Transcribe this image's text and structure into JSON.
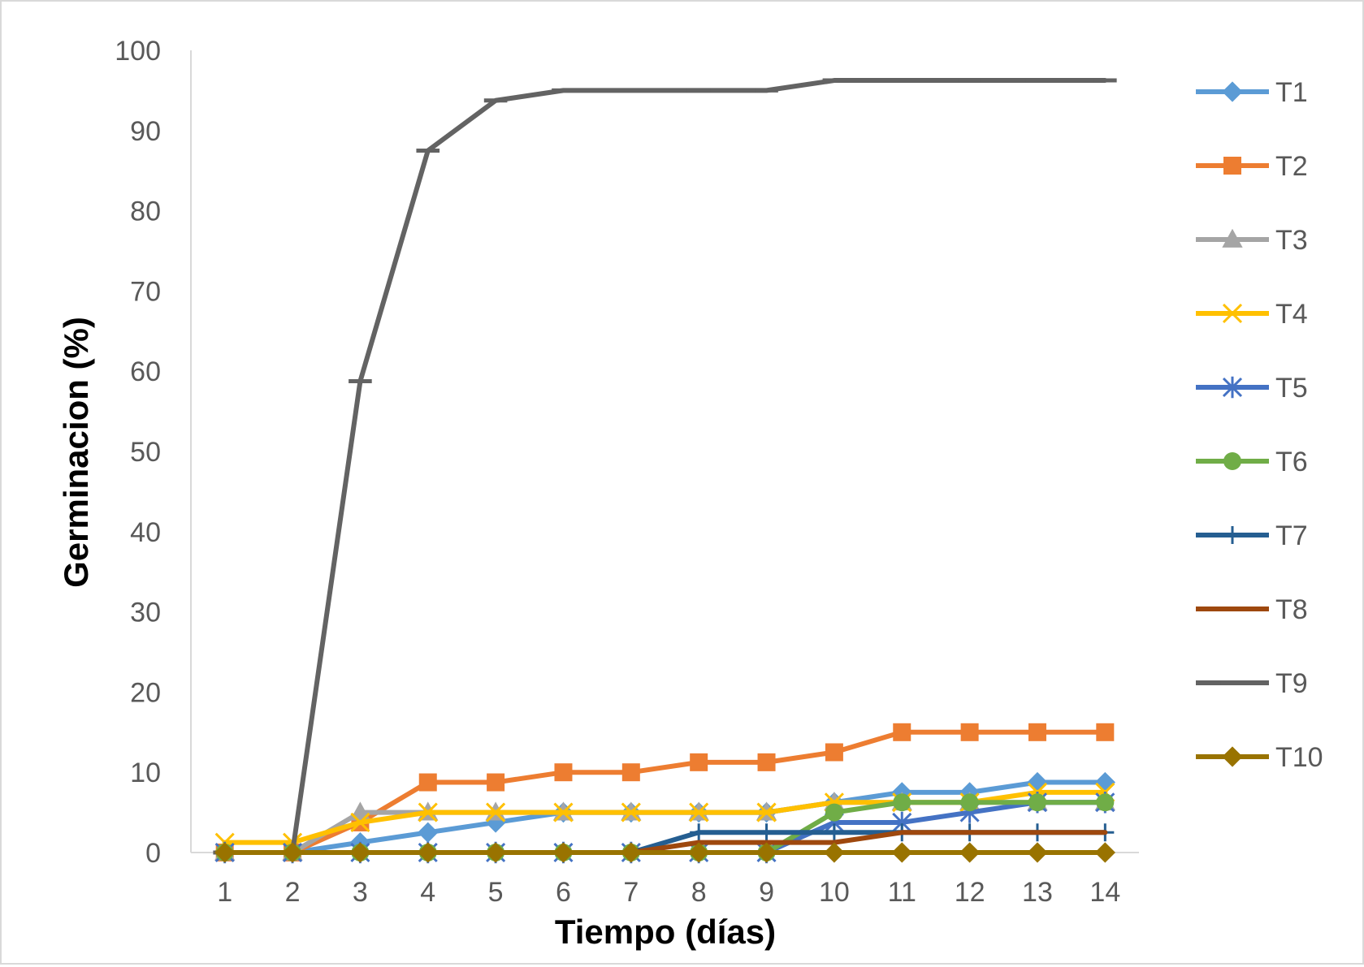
{
  "chart_data": {
    "type": "line",
    "title": "",
    "xlabel": "Tiempo (días)",
    "ylabel": "Germinacion (%)",
    "ylim": [
      0,
      100
    ],
    "yticks": [
      "0",
      "10",
      "20",
      "30",
      "40",
      "50",
      "60",
      "70",
      "80",
      "90",
      "100"
    ],
    "x": [
      "1",
      "2",
      "3",
      "4",
      "5",
      "6",
      "7",
      "8",
      "9",
      "10",
      "11",
      "12",
      "13",
      "14"
    ],
    "grid": false,
    "legend_position": "right",
    "series": [
      {
        "name": "T1",
        "color": "#5B9BD5",
        "marker": "diamond",
        "values": [
          0,
          0,
          1.25,
          2.5,
          3.75,
          5,
          5,
          5,
          5,
          6.25,
          7.5,
          7.5,
          8.75,
          8.75
        ]
      },
      {
        "name": "T2",
        "color": "#ED7D31",
        "marker": "square",
        "values": [
          0,
          0,
          3.75,
          8.75,
          8.75,
          10,
          10,
          11.25,
          11.25,
          12.5,
          15,
          15,
          15,
          15
        ]
      },
      {
        "name": "T3",
        "color": "#A5A5A5",
        "marker": "triangle",
        "values": [
          0,
          0,
          5,
          5,
          5,
          5,
          5,
          5,
          5,
          6.25,
          6.25,
          6.25,
          6.25,
          6.25
        ]
      },
      {
        "name": "T4",
        "color": "#FFC000",
        "marker": "x",
        "values": [
          1.25,
          1.25,
          3.75,
          5,
          5,
          5,
          5,
          5,
          5,
          6.25,
          6.25,
          6.25,
          7.5,
          7.5
        ]
      },
      {
        "name": "T5",
        "color": "#4472C4",
        "marker": "star",
        "values": [
          0,
          0,
          0,
          0,
          0,
          0,
          0,
          0,
          0,
          3.75,
          3.75,
          5,
          6.25,
          6.25
        ]
      },
      {
        "name": "T6",
        "color": "#70AD47",
        "marker": "circle",
        "values": [
          0,
          0,
          0,
          0,
          0,
          0,
          0,
          0,
          0,
          5,
          6.25,
          6.25,
          6.25,
          6.25
        ]
      },
      {
        "name": "T7",
        "color": "#255E91",
        "marker": "plus",
        "values": [
          0,
          0,
          0,
          0,
          0,
          0,
          0,
          2.5,
          2.5,
          2.5,
          2.5,
          2.5,
          2.5,
          2.5
        ]
      },
      {
        "name": "T8",
        "color": "#9E480E",
        "marker": "none",
        "values": [
          0,
          0,
          0,
          0,
          0,
          0,
          0,
          1.25,
          1.25,
          1.25,
          2.5,
          2.5,
          2.5,
          2.5
        ]
      },
      {
        "name": "T9",
        "color": "#636363",
        "marker": "dash",
        "values": [
          0,
          0,
          58.75,
          87.5,
          93.75,
          95,
          95,
          95,
          95,
          96.25,
          96.25,
          96.25,
          96.25,
          96.25
        ]
      },
      {
        "name": "T10",
        "color": "#997300",
        "marker": "diamond",
        "values": [
          0,
          0,
          0,
          0,
          0,
          0,
          0,
          0,
          0,
          0,
          0,
          0,
          0,
          0
        ]
      }
    ]
  }
}
